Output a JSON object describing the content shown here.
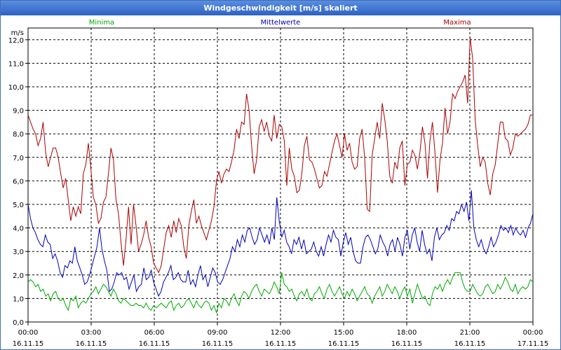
{
  "window": {
    "title": "Windgeschwindigkeit [m/s] skaliert"
  },
  "chart_data": {
    "type": "line",
    "title": "Windgeschwindigkeit [m/s] skaliert",
    "ylabel": "m/s",
    "ylim": [
      0,
      12.5
    ],
    "xlim": [
      0,
      24
    ],
    "y_ticks": [
      "0,0",
      "1,0",
      "2,0",
      "3,0",
      "4,0",
      "5,0",
      "6,0",
      "7,0",
      "8,0",
      "9,0",
      "10,0",
      "11,0",
      "12,0"
    ],
    "x_ticks": [
      {
        "time": "00:00",
        "date": "16.11.15"
      },
      {
        "time": "03:00",
        "date": "16.11.15"
      },
      {
        "time": "06:00",
        "date": "16.11.15"
      },
      {
        "time": "09:00",
        "date": "16.11.15"
      },
      {
        "time": "12:00",
        "date": "16.11.15"
      },
      {
        "time": "15:00",
        "date": "16.11.15"
      },
      {
        "time": "18:00",
        "date": "16.11.15"
      },
      {
        "time": "21:00",
        "date": "16.11.15"
      },
      {
        "time": "00:00",
        "date": "17.11.15"
      }
    ],
    "grid": true,
    "series": [
      {
        "name": "Minima",
        "color": "#00aa00",
        "values": [
          1.7,
          1.8,
          1.7,
          1.5,
          1.6,
          1.3,
          1.4,
          1.1,
          1.2,
          0.9,
          1.2,
          1.3,
          1.0,
          0.9,
          1.0,
          0.7,
          0.5,
          1.0,
          0.9,
          1.1,
          0.6,
          0.8,
          0.9,
          0.8,
          1.0,
          1.2,
          1.3,
          1.5,
          1.2,
          1.4,
          1.6,
          1.5,
          1.3,
          1.1,
          1.4,
          1.2,
          0.9,
          0.8,
          1.0,
          0.9,
          0.8,
          0.7,
          0.7,
          0.8,
          0.7,
          0.7,
          0.6,
          0.8,
          0.6,
          0.5,
          0.7,
          0.6,
          0.7,
          0.8,
          0.7,
          0.6,
          0.8,
          0.9,
          0.5,
          0.7,
          0.8,
          0.6,
          0.7,
          0.9,
          1.0,
          0.8,
          0.6,
          0.9,
          0.7,
          0.6,
          0.8,
          0.9,
          0.8,
          0.5,
          0.7,
          0.4,
          0.8,
          0.6,
          1.0,
          0.9,
          0.7,
          1.0,
          1.2,
          0.9,
          0.7,
          1.1,
          1.3,
          1.2,
          1.0,
          1.3,
          1.5,
          1.6,
          1.3,
          1.1,
          1.4,
          1.3,
          1.2,
          1.4,
          1.7,
          1.5,
          1.2,
          2.1,
          1.6,
          1.5,
          1.3,
          1.4,
          1.1,
          0.9,
          1.2,
          1.3,
          1.1,
          1.4,
          1.0,
          0.9,
          1.2,
          1.3,
          1.5,
          1.2,
          1.0,
          1.4,
          1.6,
          1.3,
          1.1,
          1.3,
          1.5,
          1.2,
          1.0,
          1.3,
          1.1,
          1.4,
          1.2,
          0.9,
          1.1,
          1.3,
          1.5,
          1.2,
          1.1,
          0.8,
          1.1,
          1.3,
          1.5,
          1.1,
          1.3,
          1.6,
          1.4,
          1.2,
          1.5,
          1.3,
          1.0,
          1.3,
          1.5,
          1.1,
          1.4,
          0.8,
          1.2,
          1.6,
          1.3,
          1.0,
          1.1,
          0.8,
          0.7,
          1.2,
          1.5,
          1.4,
          1.6,
          1.3,
          1.6,
          1.8,
          1.6,
          1.9,
          2.1,
          2.1,
          2.1,
          1.7,
          1.4,
          1.3,
          1.3,
          1.6,
          1.4,
          1.2,
          1.1,
          1.2,
          1.5,
          1.6,
          1.4,
          1.2,
          1.3,
          1.6,
          1.4,
          1.6,
          1.9,
          1.7,
          1.4,
          1.3,
          1.6,
          1.2,
          1.4,
          1.5,
          1.4,
          1.5,
          1.8,
          1.7
        ]
      },
      {
        "name": "Mittelwerte",
        "color": "#0000bb",
        "values": [
          5.0,
          4.4,
          4.0,
          3.8,
          3.5,
          3.3,
          3.2,
          3.7,
          3.4,
          3.3,
          2.7,
          2.9,
          2.6,
          2.1,
          1.9,
          2.4,
          2.3,
          2.6,
          2.5,
          3.2,
          2.6,
          2.3,
          2.0,
          1.6,
          1.7,
          2.0,
          2.4,
          2.8,
          3.2,
          4.0,
          3.1,
          2.6,
          2.2,
          1.3,
          1.4,
          1.7,
          2.1,
          2.0,
          2.1,
          1.8,
          1.9,
          1.4,
          1.7,
          2.0,
          1.3,
          1.5,
          1.6,
          2.3,
          1.8,
          1.9,
          2.2,
          1.7,
          1.4,
          1.1,
          1.3,
          1.7,
          1.9,
          2.1,
          2.4,
          1.8,
          1.9,
          2.1,
          1.8,
          1.7,
          1.7,
          2.2,
          1.6,
          1.8,
          1.5,
          2.0,
          2.4,
          1.8,
          2.0,
          1.5,
          1.9,
          2.3,
          2.1,
          1.7,
          1.6,
          1.8,
          2.1,
          2.4,
          2.7,
          3.2,
          3.0,
          3.5,
          3.2,
          3.7,
          3.4,
          3.9,
          4.0,
          3.6,
          3.3,
          3.5,
          4.0,
          3.7,
          3.4,
          3.7,
          3.3,
          4.0,
          3.5,
          5.3,
          4.3,
          3.6,
          3.9,
          3.4,
          3.2,
          2.9,
          3.5,
          3.3,
          3.6,
          3.1,
          3.5,
          2.9,
          3.0,
          3.1,
          3.4,
          3.0,
          2.8,
          3.2,
          2.8,
          3.3,
          3.7,
          3.4,
          3.9,
          3.6,
          3.5,
          2.8,
          3.4,
          3.8,
          3.3,
          3.6,
          3.0,
          2.6,
          2.5,
          2.5,
          3.2,
          3.6,
          3.7,
          3.5,
          3.2,
          2.9,
          3.1,
          3.7,
          3.4,
          3.2,
          2.8,
          3.3,
          3.5,
          3.0,
          3.6,
          3.3,
          2.8,
          3.6,
          3.9,
          3.1,
          3.7,
          4.0,
          3.4,
          3.0,
          3.9,
          3.3,
          2.9,
          3.1,
          2.6,
          3.6,
          4.0,
          3.5,
          3.7,
          3.8,
          4.1,
          3.9,
          4.4,
          4.3,
          4.7,
          4.6,
          5.0,
          4.7,
          5.1,
          4.3,
          5.6,
          4.0,
          3.5,
          3.2,
          3.5,
          3.1,
          2.9,
          3.2,
          3.6,
          3.2,
          3.4,
          3.7,
          4.1,
          3.9,
          4.0,
          3.8,
          4.1,
          3.7,
          4.0,
          3.8,
          3.7,
          3.9,
          3.6,
          4.0,
          4.2,
          4.6
        ]
      },
      {
        "name": "Maxima",
        "color": "#aa0000",
        "values": [
          8.8,
          8.5,
          8.2,
          8.0,
          7.5,
          7.8,
          8.5,
          7.2,
          6.6,
          7.0,
          7.4,
          7.4,
          7.0,
          6.3,
          5.7,
          6.1,
          5.2,
          4.3,
          4.9,
          4.5,
          4.9,
          4.6,
          6.3,
          6.7,
          7.6,
          6.5,
          5.3,
          5.0,
          4.2,
          4.4,
          5.1,
          5.3,
          6.3,
          7.4,
          6.9,
          5.2,
          4.6,
          3.4,
          2.4,
          3.5,
          4.9,
          3.3,
          5.0,
          4.1,
          3.0,
          3.3,
          3.7,
          4.3,
          3.6,
          3.2,
          2.5,
          2.3,
          2.1,
          2.4,
          3.1,
          3.8,
          4.1,
          3.6,
          4.3,
          3.8,
          4.4,
          4.1,
          3.2,
          2.7,
          4.1,
          4.7,
          5.2,
          4.2,
          4.5,
          4.1,
          3.8,
          3.5,
          3.9,
          4.3,
          4.9,
          6.0,
          6.4,
          5.9,
          6.3,
          6.5,
          6.4,
          6.8,
          7.3,
          8.2,
          7.8,
          8.5,
          8.4,
          9.7,
          9.0,
          7.5,
          6.3,
          6.9,
          8.3,
          8.6,
          8.1,
          8.5,
          7.9,
          7.7,
          8.8,
          7.8,
          8.4,
          8.3,
          7.7,
          5.8,
          7.4,
          6.5,
          6.2,
          5.5,
          5.6,
          6.3,
          7.5,
          7.9,
          6.9,
          6.8,
          6.5,
          6.1,
          5.7,
          5.8,
          6.4,
          6.2,
          6.7,
          7.2,
          7.7,
          8.0,
          7.5,
          7.0,
          8.0,
          7.3,
          7.6,
          6.8,
          6.5,
          6.6,
          7.8,
          8.2,
          7.0,
          4.8,
          4.7,
          7.1,
          7.8,
          8.5,
          7.8,
          9.3,
          8.6,
          7.7,
          6.2,
          5.9,
          6.8,
          6.5,
          7.4,
          7.7,
          5.8,
          6.7,
          6.8,
          7.3,
          7.1,
          6.5,
          7.2,
          8.3,
          7.6,
          6.1,
          7.7,
          8.5,
          7.2,
          5.5,
          6.9,
          7.6,
          9.1,
          8.0,
          8.5,
          9.7,
          9.5,
          9.8,
          10.0,
          10.2,
          10.5,
          9.3,
          12.1,
          11.2,
          8.6,
          7.5,
          6.6,
          7.0,
          6.8,
          5.9,
          5.4,
          6.3,
          6.7,
          7.6,
          8.5,
          8.5,
          7.8,
          7.7,
          7.1,
          7.4,
          8.0,
          7.9,
          8.0,
          8.1,
          8.2,
          8.4,
          8.8,
          8.8
        ]
      }
    ]
  }
}
